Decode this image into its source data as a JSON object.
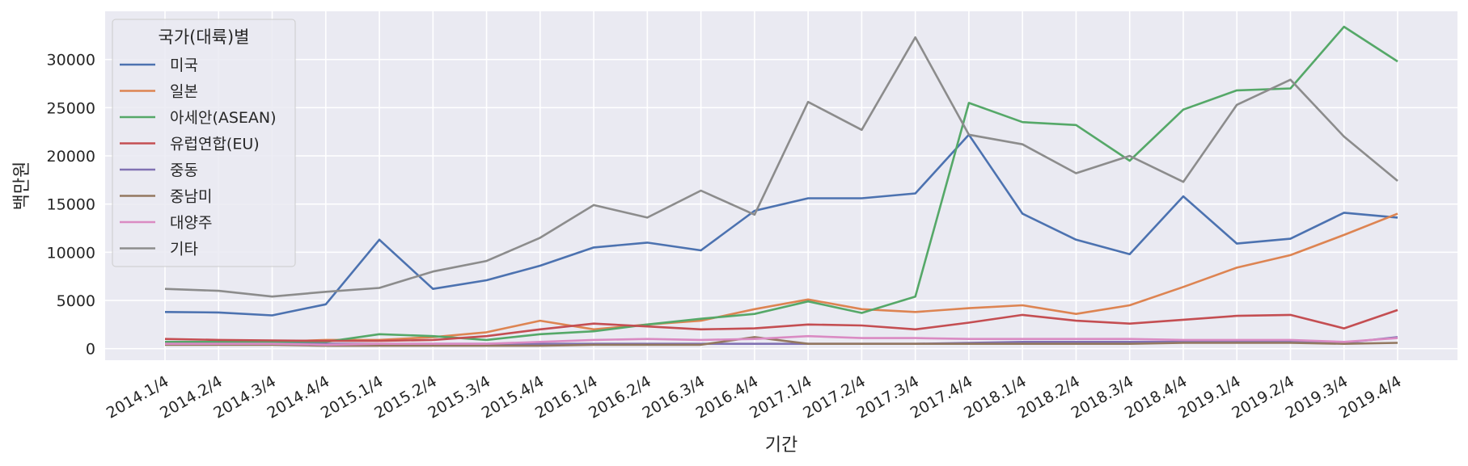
{
  "chart_data": {
    "type": "line",
    "xlabel": "기간",
    "ylabel": "백만원",
    "ylim": [
      -1200,
      35000
    ],
    "yticks": [
      0,
      5000,
      10000,
      15000,
      20000,
      25000,
      30000
    ],
    "grid": true,
    "legend": {
      "title": "국가(대륙)별",
      "placement": "top-left"
    },
    "x": [
      "2014.1/4",
      "2014.2/4",
      "2014.3/4",
      "2014.4/4",
      "2015.1/4",
      "2015.2/4",
      "2015.3/4",
      "2015.4/4",
      "2016.1/4",
      "2016.2/4",
      "2016.3/4",
      "2016.4/4",
      "2017.1/4",
      "2017.2/4",
      "2017.3/4",
      "2017.4/4",
      "2018.1/4",
      "2018.2/4",
      "2018.3/4",
      "2018.4/4",
      "2019.1/4",
      "2019.2/4",
      "2019.3/4",
      "2019.4/4"
    ],
    "series": [
      {
        "name": "미국",
        "color": "#4c72b0",
        "values": [
          3800,
          3750,
          3450,
          4600,
          11300,
          6200,
          7100,
          8600,
          10500,
          11000,
          10200,
          14300,
          15600,
          15600,
          16100,
          22200,
          14000,
          11300,
          9800,
          15800,
          10900,
          11400,
          14100,
          13600
        ]
      },
      {
        "name": "일본",
        "color": "#dd8452",
        "values": [
          700,
          700,
          700,
          900,
          900,
          1200,
          1700,
          2900,
          2000,
          2500,
          2900,
          4100,
          5100,
          4100,
          3800,
          4200,
          4500,
          3600,
          4500,
          6400,
          8400,
          9700,
          11800,
          14000
        ]
      },
      {
        "name": "아세안(ASEAN)",
        "color": "#55a868",
        "values": [
          700,
          700,
          700,
          700,
          1500,
          1300,
          900,
          1500,
          1800,
          2500,
          3100,
          3600,
          4900,
          3700,
          5400,
          25500,
          23500,
          23200,
          19500,
          24800,
          26800,
          27000,
          33400,
          29800
        ]
      },
      {
        "name": "유럽연합(EU)",
        "color": "#c44e52",
        "values": [
          1000,
          900,
          850,
          800,
          800,
          900,
          1300,
          2000,
          2600,
          2300,
          2000,
          2100,
          2500,
          2400,
          2000,
          2700,
          3500,
          2900,
          2600,
          3000,
          3400,
          3500,
          2100,
          4000
        ]
      },
      {
        "name": "중동",
        "color": "#8172b3",
        "values": [
          500,
          500,
          500,
          500,
          500,
          500,
          500,
          500,
          500,
          500,
          500,
          500,
          500,
          500,
          500,
          600,
          700,
          700,
          700,
          700,
          700,
          700,
          600,
          1200
        ]
      },
      {
        "name": "중남미",
        "color": "#937860",
        "values": [
          400,
          400,
          400,
          300,
          300,
          300,
          300,
          300,
          400,
          400,
          400,
          1200,
          500,
          500,
          500,
          500,
          500,
          500,
          500,
          600,
          600,
          600,
          500,
          600
        ]
      },
      {
        "name": "대양주",
        "color": "#da8bc3",
        "values": [
          500,
          500,
          500,
          400,
          500,
          500,
          500,
          700,
          900,
          1000,
          900,
          1000,
          1300,
          1100,
          1100,
          1000,
          1000,
          1000,
          1000,
          900,
          900,
          900,
          700,
          1100
        ]
      },
      {
        "name": "기타",
        "color": "#8c8c8c",
        "values": [
          6200,
          6000,
          5400,
          5900,
          6300,
          8000,
          9100,
          11500,
          14900,
          13600,
          16400,
          13900,
          25600,
          22700,
          32300,
          22200,
          21200,
          18200,
          20000,
          17300,
          25300,
          27900,
          22000,
          17400
        ]
      }
    ]
  }
}
